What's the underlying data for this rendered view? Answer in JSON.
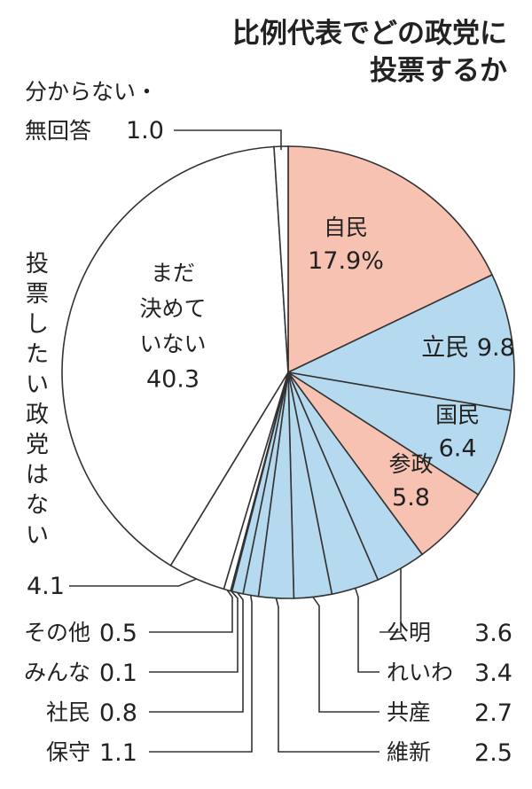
{
  "chart_data": {
    "type": "pie",
    "title_lines": [
      "比例代表でどの政党に",
      "投票するか"
    ],
    "unit": "%",
    "slices": [
      {
        "name": "自民",
        "value": 17.9,
        "value_text": "17.9%",
        "color": "#f7c2b2"
      },
      {
        "name": "立民",
        "value": 9.8,
        "value_text": "9.8",
        "color": "#b5d9ef"
      },
      {
        "name": "国民",
        "value": 6.4,
        "value_text": "6.4",
        "color": "#b5d9ef"
      },
      {
        "name": "参政",
        "value": 5.8,
        "value_text": "5.8",
        "color": "#f7c2b2"
      },
      {
        "name": "公明",
        "value": 3.6,
        "value_text": "3.6",
        "color": "#b5d9ef"
      },
      {
        "name": "れいわ",
        "value": 3.4,
        "value_text": "3.4",
        "color": "#b5d9ef"
      },
      {
        "name": "共産",
        "value": 2.7,
        "value_text": "2.7",
        "color": "#b5d9ef"
      },
      {
        "name": "維新",
        "value": 2.5,
        "value_text": "2.5",
        "color": "#b5d9ef"
      },
      {
        "name": "保守",
        "value": 1.1,
        "value_text": "1.1",
        "color": "#b5d9ef"
      },
      {
        "name": "社民",
        "value": 0.8,
        "value_text": "0.8",
        "color": "#b5d9ef"
      },
      {
        "name": "みんな",
        "value": 0.1,
        "value_text": "0.1",
        "color": "#b5d9ef"
      },
      {
        "name": "その他",
        "value": 0.5,
        "value_text": "0.5",
        "color": "#ffffff"
      },
      {
        "name": "投票したい政党はない",
        "value": 4.1,
        "value_text": "4.1",
        "color": "#ffffff"
      },
      {
        "name": "まだ決めていない",
        "value": 40.3,
        "value_text": "40.3",
        "color": "#ffffff"
      },
      {
        "name": "分からない・無回答",
        "value": 1.0,
        "value_text": "1.0",
        "color": "#ffffff"
      }
    ]
  }
}
